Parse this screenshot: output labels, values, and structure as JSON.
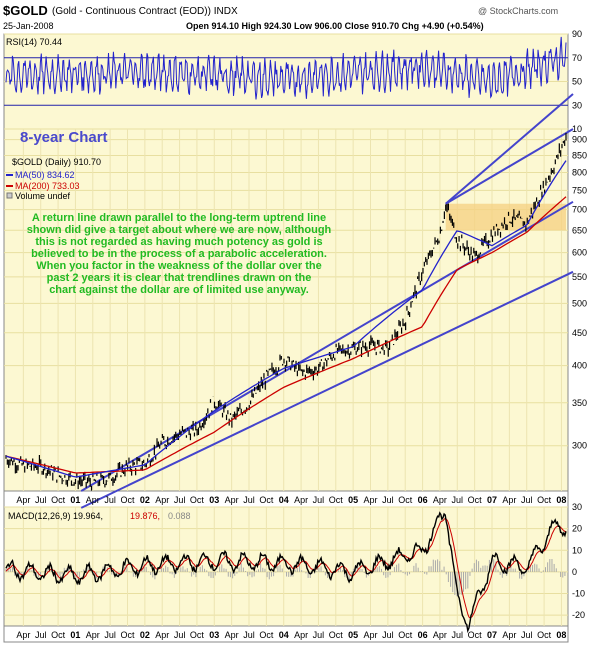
{
  "header": {
    "symbol": "$GOLD",
    "name": "(Gold - Continuous Contract (EOD)) INDX",
    "watermark": "@ StockCharts.com",
    "date": "25-Jan-2008",
    "ohlc": "Open 914.10  High 924.30  Low 906.00  Close 910.70  Chg +4.90 (+0.54%)",
    "change_up_mark": "▲"
  },
  "rsi": {
    "label": "RSI(14) 70.44",
    "ticks": [
      "90",
      "70",
      "50",
      "30",
      "10"
    ]
  },
  "annotation": {
    "title": "8-year Chart",
    "lines": [
      "A return line drawn parallel to the long-term uptrend line",
      "shown did give a target about where we are now, although",
      "this is not regarded as having much potency as gold is",
      "believed to be in the process of a parabolic acceleration.",
      "When you factor in the weakness of the dollar over the",
      "past 2 years it is clear that trendlines drawn on the",
      "chart against the dollar are of limited use anyway."
    ]
  },
  "legend": {
    "price": "$GOLD (Daily) 910.70",
    "ma50": "MA(50) 834.62",
    "ma200": "MA(200) 733.03",
    "volume": "Volume undef"
  },
  "price_axis": [
    "900",
    "850",
    "800",
    "750",
    "700",
    "650",
    "600",
    "550",
    "500",
    "450",
    "400",
    "350",
    "300"
  ],
  "x_axis": {
    "labels": [
      "Apr",
      "Jul",
      "Oct",
      "01",
      "Apr",
      "Jul",
      "Oct",
      "02",
      "Apr",
      "Jul",
      "Oct",
      "03",
      "Apr",
      "Jul",
      "Oct",
      "04",
      "Apr",
      "Jul",
      "Oct",
      "05",
      "Apr",
      "Jul",
      "Oct",
      "06",
      "Apr",
      "Jul",
      "Oct",
      "07",
      "Apr",
      "Jul",
      "Oct",
      "08"
    ]
  },
  "macd": {
    "label_main": "MACD(12,26,9) 19.964,",
    "label_signal": "19.876,",
    "label_hist": "0.088",
    "ticks": [
      "30",
      "20",
      "10",
      "0",
      "-10",
      "-20"
    ]
  },
  "colors": {
    "panel_bg": "#fcf8d2",
    "price": "#000000",
    "ma50": "#2222cc",
    "ma200": "#cc0000",
    "rsi": "#2222cc",
    "trendline": "#4444cc",
    "annotation_text": "#22bb22",
    "title_text": "#4a4acc",
    "band": "#f5d080"
  },
  "chart_data": {
    "type": "line",
    "xlabel": "",
    "ylabel": "",
    "x_range": [
      "2000-01",
      "2008-01-25"
    ],
    "ylim": [
      255,
      935
    ],
    "y_scale": "log",
    "series": [
      {
        "name": "$GOLD (Daily)",
        "points": [
          [
            "2000-01",
            287
          ],
          [
            "2000-04",
            279
          ],
          [
            "2000-07",
            279
          ],
          [
            "2000-10",
            270
          ],
          [
            "2001-01",
            265
          ],
          [
            "2001-04",
            263
          ],
          [
            "2001-07",
            267
          ],
          [
            "2001-10",
            278
          ],
          [
            "2002-01",
            281
          ],
          [
            "2002-04",
            303
          ],
          [
            "2002-07",
            313
          ],
          [
            "2002-10",
            317
          ],
          [
            "2003-01",
            352
          ],
          [
            "2003-04",
            329
          ],
          [
            "2003-07",
            349
          ],
          [
            "2003-10",
            383
          ],
          [
            "2004-01",
            410
          ],
          [
            "2004-04",
            390
          ],
          [
            "2004-07",
            395
          ],
          [
            "2004-10",
            420
          ],
          [
            "2005-01",
            425
          ],
          [
            "2005-04",
            430
          ],
          [
            "2005-07",
            425
          ],
          [
            "2005-10",
            470
          ],
          [
            "2006-01",
            560
          ],
          [
            "2006-04",
            640
          ],
          [
            "2006-05",
            710
          ],
          [
            "2006-07",
            630
          ],
          [
            "2006-10",
            590
          ],
          [
            "2007-01",
            640
          ],
          [
            "2007-04",
            680
          ],
          [
            "2007-07",
            665
          ],
          [
            "2007-10",
            760
          ],
          [
            "2007-12",
            830
          ],
          [
            "2008-01-25",
            910.7
          ]
        ]
      },
      {
        "name": "MA(50)",
        "points": [
          [
            "2000-01",
            289
          ],
          [
            "2001-01",
            268
          ],
          [
            "2002-01",
            280
          ],
          [
            "2003-01",
            340
          ],
          [
            "2004-01",
            396
          ],
          [
            "2005-01",
            428
          ],
          [
            "2006-01",
            525
          ],
          [
            "2006-07",
            650
          ],
          [
            "2007-01",
            615
          ],
          [
            "2007-07",
            662
          ],
          [
            "2008-01-25",
            834.62
          ]
        ]
      },
      {
        "name": "MA(200)",
        "points": [
          [
            "2000-01",
            289
          ],
          [
            "2001-01",
            272
          ],
          [
            "2002-01",
            275
          ],
          [
            "2003-01",
            315
          ],
          [
            "2004-01",
            370
          ],
          [
            "2005-01",
            410
          ],
          [
            "2006-01",
            460
          ],
          [
            "2006-07",
            565
          ],
          [
            "2007-01",
            600
          ],
          [
            "2007-07",
            645
          ],
          [
            "2008-01-25",
            733.03
          ]
        ]
      },
      {
        "name": "RSI(14)",
        "y_range": [
          10,
          90
        ],
        "points": [
          [
            "2000-01",
            55
          ],
          [
            "2002-01",
            58
          ],
          [
            "2004-01",
            52
          ],
          [
            "2006-01",
            62
          ],
          [
            "2007-01",
            50
          ],
          [
            "2008-01-25",
            70.44
          ]
        ]
      },
      {
        "name": "MACD(12,26,9)",
        "y_range": [
          -25,
          30
        ],
        "points": [
          [
            "2000-01",
            1
          ],
          [
            "2001-01",
            -2
          ],
          [
            "2002-01",
            3
          ],
          [
            "2003-01",
            5
          ],
          [
            "2004-01",
            4
          ],
          [
            "2005-01",
            0
          ],
          [
            "2006-01",
            10
          ],
          [
            "2006-05",
            29
          ],
          [
            "2006-07",
            -12
          ],
          [
            "2006-09",
            -24
          ],
          [
            "2007-01",
            5
          ],
          [
            "2007-07",
            2
          ],
          [
            "2007-12",
            22
          ],
          [
            "2008-01-25",
            19.964
          ]
        ]
      }
    ]
  }
}
